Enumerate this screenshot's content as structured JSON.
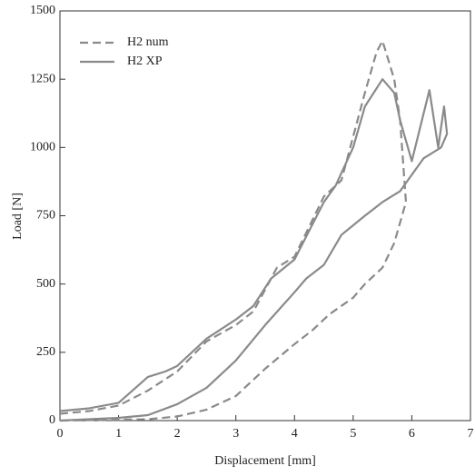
{
  "chart_data": {
    "type": "line",
    "xlabel": "Displacement [mm]",
    "ylabel": "Load [N]",
    "xlim": [
      0,
      7
    ],
    "ylim": [
      0,
      1500
    ],
    "xticks": [
      0,
      1,
      2,
      3,
      4,
      5,
      6,
      7
    ],
    "yticks": [
      0,
      250,
      500,
      750,
      1000,
      1250,
      1500
    ],
    "legend": "upper-left",
    "series": [
      {
        "name": "H2 num",
        "color": "#8a8a8a",
        "dash": true,
        "x": [
          0,
          0.5,
          1,
          1.5,
          2,
          2.5,
          3,
          3.3,
          3.7,
          4,
          4.5,
          4.8,
          5.2,
          5.4,
          5.5,
          5.7,
          5.8,
          5.9,
          5.7,
          5.5,
          5.2,
          5,
          4.6,
          4.3,
          4,
          3.5,
          3,
          2.5,
          2,
          1.5,
          0
        ],
        "values": [
          25,
          35,
          55,
          110,
          180,
          290,
          350,
          400,
          560,
          600,
          820,
          880,
          1200,
          1350,
          1390,
          1250,
          1100,
          800,
          650,
          560,
          500,
          450,
          390,
          330,
          280,
          190,
          90,
          40,
          15,
          5,
          0
        ]
      },
      {
        "name": "H2 XP",
        "color": "#8a8a8a",
        "dash": false,
        "x": [
          0,
          0.5,
          1,
          1.5,
          1.8,
          2,
          2.5,
          3,
          3.3,
          3.6,
          4,
          4.5,
          4.7,
          5,
          5.2,
          5.5,
          5.7,
          5.8,
          6,
          6.3,
          6.45,
          6.55,
          6.6,
          6.5,
          6.2,
          6,
          5.8,
          5.5,
          5.2,
          4.8,
          4.5,
          4.2,
          4,
          3.5,
          3,
          2.5,
          2,
          1.5,
          1,
          0
        ],
        "values": [
          35,
          45,
          65,
          160,
          180,
          200,
          300,
          370,
          420,
          520,
          590,
          800,
          860,
          1000,
          1150,
          1250,
          1200,
          1100,
          950,
          1210,
          1000,
          1150,
          1050,
          1000,
          960,
          900,
          840,
          800,
          750,
          680,
          570,
          520,
          470,
          350,
          220,
          120,
          60,
          20,
          10,
          0
        ]
      }
    ]
  }
}
